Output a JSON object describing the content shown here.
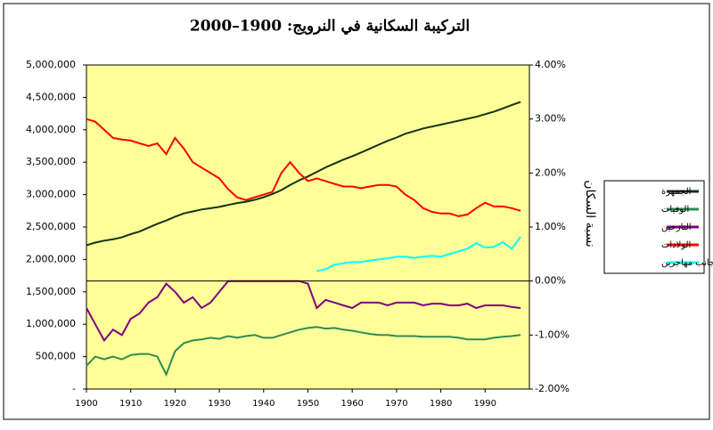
{
  "chart_data": {
    "type": "line",
    "title": "التركيبة السكانية في النرويج: 1900–2000",
    "y2_label": "نسبة السكان",
    "background": "#ffff99",
    "x": [
      1900,
      1902,
      1904,
      1906,
      1908,
      1910,
      1912,
      1914,
      1916,
      1918,
      1920,
      1922,
      1924,
      1926,
      1928,
      1930,
      1932,
      1934,
      1936,
      1938,
      1940,
      1942,
      1944,
      1946,
      1948,
      1950,
      1952,
      1954,
      1956,
      1958,
      1960,
      1962,
      1964,
      1966,
      1968,
      1970,
      1972,
      1974,
      1976,
      1978,
      1980,
      1982,
      1984,
      1986,
      1988,
      1990,
      1992,
      1994,
      1996,
      1998
    ],
    "xlim": [
      1900,
      2000
    ],
    "xticks": [
      1900,
      1910,
      1920,
      1930,
      1940,
      1950,
      1960,
      1970,
      1980,
      1990
    ],
    "ylim": [
      0,
      5000000
    ],
    "yticks": [
      {
        "value": 0,
        "label": "-"
      },
      {
        "value": 500000,
        "label": "500,000"
      },
      {
        "value": 1000000,
        "label": "1,000,000"
      },
      {
        "value": 1500000,
        "label": "1,500,000"
      },
      {
        "value": 2000000,
        "label": "2,000,000"
      },
      {
        "value": 2500000,
        "label": "2,500,000"
      },
      {
        "value": 3000000,
        "label": "3,000,000"
      },
      {
        "value": 3500000,
        "label": "3,500,000"
      },
      {
        "value": 4000000,
        "label": "4,000,000"
      },
      {
        "value": 4500000,
        "label": "4,500,000"
      },
      {
        "value": 5000000,
        "label": "5,000,000"
      }
    ],
    "y2lim": [
      -2,
      4
    ],
    "y2ticks": [
      {
        "value": -2,
        "label": "-2.00%"
      },
      {
        "value": -1,
        "label": "-1.00%"
      },
      {
        "value": 0,
        "label": "0.00%"
      },
      {
        "value": 1,
        "label": "1.00%"
      },
      {
        "value": 2,
        "label": "2.00%"
      },
      {
        "value": 3,
        "label": "3.00%"
      },
      {
        "value": 4,
        "label": "4.00%"
      }
    ],
    "series": [
      {
        "name": "الجمهرة",
        "color": "#143214",
        "values": [
          2220000,
          2260000,
          2290000,
          2310000,
          2340000,
          2390000,
          2430000,
          2490000,
          2550000,
          2600000,
          2660000,
          2710000,
          2740000,
          2770000,
          2790000,
          2810000,
          2840000,
          2870000,
          2890000,
          2920000,
          2960000,
          3010000,
          3070000,
          3150000,
          3220000,
          3280000,
          3350000,
          3420000,
          3480000,
          3540000,
          3590000,
          3650000,
          3710000,
          3770000,
          3830000,
          3880000,
          3940000,
          3980000,
          4020000,
          4050000,
          4080000,
          4110000,
          4140000,
          4170000,
          4200000,
          4240000,
          4280000,
          4330000,
          4380000,
          4430000
        ]
      },
      {
        "name": "الوفيات",
        "color": "#2e8b57",
        "axis": "y2",
        "values": [
          -1.57,
          -1.4,
          -1.45,
          -1.4,
          -1.45,
          -1.37,
          -1.35,
          -1.35,
          -1.4,
          -1.73,
          -1.3,
          -1.15,
          -1.1,
          -1.08,
          -1.05,
          -1.07,
          -1.02,
          -1.05,
          -1.02,
          -1.0,
          -1.05,
          -1.05,
          -1.0,
          -0.95,
          -0.9,
          -0.87,
          -0.85,
          -0.88,
          -0.87,
          -0.9,
          -0.92,
          -0.95,
          -0.98,
          -1.0,
          -1.0,
          -1.02,
          -1.02,
          -1.02,
          -1.03,
          -1.03,
          -1.03,
          -1.03,
          -1.05,
          -1.08,
          -1.08,
          -1.08,
          -1.05,
          -1.03,
          -1.02,
          -1.0
        ]
      },
      {
        "name": "النازحين",
        "color": "#800080",
        "axis": "y2",
        "values": [
          -0.5,
          -0.8,
          -1.1,
          -0.9,
          -1.0,
          -0.7,
          -0.6,
          -0.4,
          -0.3,
          -0.05,
          -0.2,
          -0.4,
          -0.3,
          -0.5,
          -0.4,
          -0.2,
          0,
          0,
          0,
          0,
          0,
          0,
          0,
          0,
          0,
          -0.05,
          -0.5,
          -0.35,
          -0.4,
          -0.45,
          -0.5,
          -0.4,
          -0.4,
          -0.4,
          -0.45,
          -0.4,
          -0.4,
          -0.4,
          -0.45,
          -0.42,
          -0.42,
          -0.45,
          -0.45,
          -0.42,
          -0.5,
          -0.45,
          -0.45,
          -0.45,
          -0.48,
          -0.5
        ]
      },
      {
        "name": "الولادات",
        "color": "#ff0000",
        "axis": "y2",
        "values": [
          3.0,
          2.95,
          2.8,
          2.65,
          2.62,
          2.6,
          2.55,
          2.5,
          2.55,
          2.35,
          2.65,
          2.45,
          2.2,
          2.1,
          2.0,
          1.9,
          1.7,
          1.55,
          1.5,
          1.55,
          1.6,
          1.65,
          2.0,
          2.2,
          2.0,
          1.85,
          1.9,
          1.85,
          1.8,
          1.75,
          1.75,
          1.72,
          1.75,
          1.78,
          1.78,
          1.75,
          1.6,
          1.5,
          1.35,
          1.28,
          1.25,
          1.25,
          1.2,
          1.23,
          1.35,
          1.45,
          1.38,
          1.38,
          1.35,
          1.3
        ]
      },
      {
        "name": "أجانب مهاجرين",
        "color": "#00ffff",
        "axis": "y2",
        "values": [
          null,
          null,
          null,
          null,
          null,
          null,
          null,
          null,
          null,
          null,
          null,
          null,
          null,
          null,
          null,
          null,
          null,
          null,
          null,
          null,
          null,
          null,
          null,
          null,
          null,
          null,
          0.18,
          0.22,
          0.3,
          0.33,
          0.35,
          0.35,
          0.38,
          0.4,
          0.42,
          0.45,
          0.45,
          0.43,
          0.45,
          0.47,
          0.45,
          0.5,
          0.55,
          0.6,
          0.7,
          0.62,
          0.63,
          0.72,
          0.6,
          0.82
        ]
      }
    ]
  }
}
